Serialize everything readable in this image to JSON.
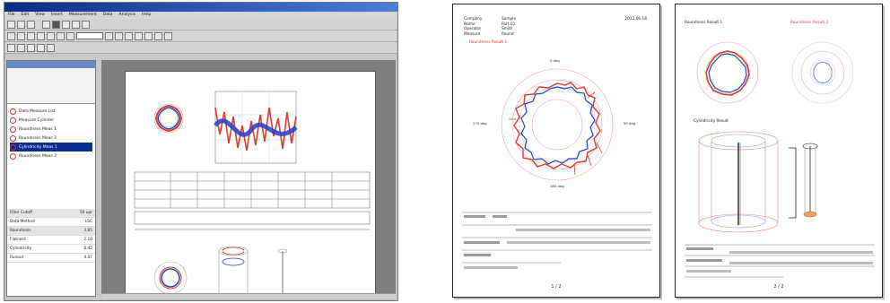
{
  "colors": {
    "trace_red": "#e03a2a",
    "trace_blue": "#2440c8",
    "title_bar": "#0a2c8a"
  },
  "window": {
    "menu": [
      "File",
      "Edit",
      "View",
      "Insert",
      "Measurement",
      "Data",
      "Analysis",
      "Help"
    ]
  },
  "left_pane": {
    "tree_items": [
      "Data Measure List",
      "Measure Cylinder",
      "Roundness Meas 1",
      "Roundness Meas 2",
      "Cylindricity Meas 1",
      "Roundness Meas 3"
    ],
    "props": [
      {
        "label": "Filter Cutoff",
        "value": "50 upr"
      },
      {
        "label": "Data Method",
        "value": "LSC"
      },
      {
        "label": "Roundness",
        "value": "3.85"
      },
      {
        "label": "Flatness",
        "value": "2.10"
      },
      {
        "label": "Cylindricity",
        "value": "8.42"
      },
      {
        "label": "Runout",
        "value": "4.07"
      }
    ]
  },
  "report_pages": [
    {
      "header": [
        {
          "k": "Company",
          "v": "Sample"
        },
        {
          "k": "Name",
          "v": "Part 01"
        },
        {
          "k": "Operator",
          "v": "Smith"
        },
        {
          "k": "Measure",
          "v": "Round"
        }
      ],
      "date": "2012.06.18",
      "section_title": "Roundness Result 1",
      "compass": [
        "0 deg",
        "90 deg",
        "180 deg",
        "270 deg"
      ],
      "page_num": "1 / 2"
    },
    {
      "section_title_left": "Roundness Result 1",
      "section_title_right": "Roundness Result 2",
      "section_title_mid": "Cylindricity Result",
      "page_num": "2 / 2"
    }
  ]
}
